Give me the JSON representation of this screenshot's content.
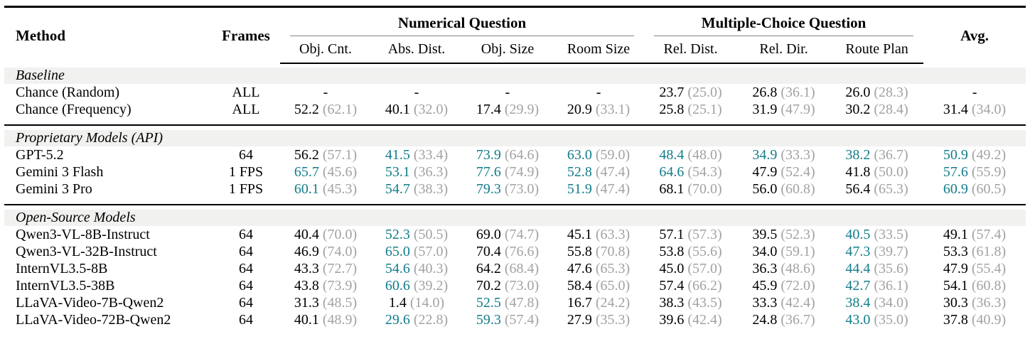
{
  "colors": {
    "highlight_teal": "#127C8A",
    "paren_gray": "#A2A2A2",
    "section_band": "#F1F1F0",
    "rule": "#000000"
  },
  "header": {
    "method": "Method",
    "frames": "Frames",
    "groups": [
      {
        "label": "Numerical Question",
        "span": 4
      },
      {
        "label": "Multiple-Choice Question",
        "span": 3
      }
    ],
    "subcolumns": [
      "Obj. Cnt.",
      "Abs. Dist.",
      "Obj. Size",
      "Room Size",
      "Rel. Dist.",
      "Rel. Dir.",
      "Route Plan"
    ],
    "avg": "Avg."
  },
  "table": {
    "sections": [
      {
        "label": "Baseline",
        "rows": [
          {
            "method": "Chance (Random)",
            "frames": "ALL",
            "cells": [
              {
                "v": "-"
              },
              {
                "v": "-"
              },
              {
                "v": "-"
              },
              {
                "v": "-"
              },
              {
                "v": "23.7",
                "p": "25.0"
              },
              {
                "v": "26.8",
                "p": "36.1"
              },
              {
                "v": "26.0",
                "p": "28.3"
              },
              {
                "v": "-"
              }
            ]
          },
          {
            "method": "Chance (Frequency)",
            "frames": "ALL",
            "cells": [
              {
                "v": "52.2",
                "p": "62.1"
              },
              {
                "v": "40.1",
                "p": "32.0"
              },
              {
                "v": "17.4",
                "p": "29.9"
              },
              {
                "v": "20.9",
                "p": "33.1"
              },
              {
                "v": "25.8",
                "p": "25.1"
              },
              {
                "v": "31.9",
                "p": "47.9"
              },
              {
                "v": "30.2",
                "p": "28.4"
              },
              {
                "v": "31.4",
                "p": "34.0"
              }
            ]
          }
        ]
      },
      {
        "label": "Proprietary Models (API)",
        "rows": [
          {
            "method": "GPT-5.2",
            "frames": "64",
            "cells": [
              {
                "v": "56.2",
                "p": "57.1"
              },
              {
                "v": "41.5",
                "p": "33.4",
                "hl": true
              },
              {
                "v": "73.9",
                "p": "64.6",
                "hl": true
              },
              {
                "v": "63.0",
                "p": "59.0",
                "hl": true
              },
              {
                "v": "48.4",
                "p": "48.0",
                "hl": true
              },
              {
                "v": "34.9",
                "p": "33.3",
                "hl": true
              },
              {
                "v": "38.2",
                "p": "36.7",
                "hl": true
              },
              {
                "v": "50.9",
                "p": "49.2",
                "hl": true
              }
            ]
          },
          {
            "method": "Gemini 3 Flash",
            "frames": "1 FPS",
            "cells": [
              {
                "v": "65.7",
                "p": "45.6",
                "hl": true
              },
              {
                "v": "53.1",
                "p": "36.3",
                "hl": true
              },
              {
                "v": "77.6",
                "p": "74.9",
                "hl": true
              },
              {
                "v": "52.8",
                "p": "47.4",
                "hl": true
              },
              {
                "v": "64.6",
                "p": "54.3",
                "hl": true
              },
              {
                "v": "47.9",
                "p": "52.4"
              },
              {
                "v": "41.8",
                "p": "50.0"
              },
              {
                "v": "57.6",
                "p": "55.9",
                "hl": true
              }
            ]
          },
          {
            "method": "Gemini 3 Pro",
            "frames": "1 FPS",
            "cells": [
              {
                "v": "60.1",
                "p": "45.3",
                "hl": true
              },
              {
                "v": "54.7",
                "p": "38.3",
                "hl": true
              },
              {
                "v": "79.3",
                "p": "73.0",
                "hl": true
              },
              {
                "v": "51.9",
                "p": "47.4",
                "hl": true
              },
              {
                "v": "68.1",
                "p": "70.0"
              },
              {
                "v": "56.0",
                "p": "60.8"
              },
              {
                "v": "56.4",
                "p": "65.3"
              },
              {
                "v": "60.9",
                "p": "60.5",
                "hl": true
              }
            ]
          }
        ]
      },
      {
        "label": "Open-Source Models",
        "rows": [
          {
            "method": "Qwen3-VL-8B-Instruct",
            "frames": "64",
            "cells": [
              {
                "v": "40.4",
                "p": "70.0"
              },
              {
                "v": "52.3",
                "p": "50.5",
                "hl": true
              },
              {
                "v": "69.0",
                "p": "74.7"
              },
              {
                "v": "45.1",
                "p": "63.3"
              },
              {
                "v": "57.1",
                "p": "57.3"
              },
              {
                "v": "39.5",
                "p": "52.3"
              },
              {
                "v": "40.5",
                "p": "33.5",
                "hl": true
              },
              {
                "v": "49.1",
                "p": "57.4"
              }
            ]
          },
          {
            "method": "Qwen3-VL-32B-Instruct",
            "frames": "64",
            "cells": [
              {
                "v": "46.9",
                "p": "74.0"
              },
              {
                "v": "65.0",
                "p": "57.0",
                "hl": true
              },
              {
                "v": "70.4",
                "p": "76.6"
              },
              {
                "v": "55.8",
                "p": "70.8"
              },
              {
                "v": "53.8",
                "p": "55.6"
              },
              {
                "v": "34.0",
                "p": "59.1"
              },
              {
                "v": "47.3",
                "p": "39.7",
                "hl": true
              },
              {
                "v": "53.3",
                "p": "61.8"
              }
            ]
          },
          {
            "method": "InternVL3.5-8B",
            "frames": "64",
            "cells": [
              {
                "v": "43.3",
                "p": "72.7"
              },
              {
                "v": "54.6",
                "p": "40.3",
                "hl": true
              },
              {
                "v": "64.2",
                "p": "68.4"
              },
              {
                "v": "47.6",
                "p": "65.3"
              },
              {
                "v": "45.0",
                "p": "57.0"
              },
              {
                "v": "36.3",
                "p": "48.6"
              },
              {
                "v": "44.4",
                "p": "35.6",
                "hl": true
              },
              {
                "v": "47.9",
                "p": "55.4"
              }
            ]
          },
          {
            "method": "InternVL3.5-38B",
            "frames": "64",
            "cells": [
              {
                "v": "43.8",
                "p": "73.9"
              },
              {
                "v": "60.6",
                "p": "39.2",
                "hl": true
              },
              {
                "v": "70.2",
                "p": "73.0"
              },
              {
                "v": "58.4",
                "p": "65.0"
              },
              {
                "v": "57.4",
                "p": "66.2"
              },
              {
                "v": "45.9",
                "p": "72.0"
              },
              {
                "v": "42.7",
                "p": "36.1",
                "hl": true
              },
              {
                "v": "54.1",
                "p": "60.8"
              }
            ]
          },
          {
            "method": "LLaVA-Video-7B-Qwen2",
            "frames": "64",
            "cells": [
              {
                "v": "31.3",
                "p": "48.5"
              },
              {
                "v": "1.4",
                "p": "14.0"
              },
              {
                "v": "52.5",
                "p": "47.8",
                "hl": true
              },
              {
                "v": "16.7",
                "p": "24.2"
              },
              {
                "v": "38.3",
                "p": "43.5"
              },
              {
                "v": "33.3",
                "p": "42.4"
              },
              {
                "v": "38.4",
                "p": "34.0",
                "hl": true
              },
              {
                "v": "30.3",
                "p": "36.3"
              }
            ]
          },
          {
            "method": "LLaVA-Video-72B-Qwen2",
            "frames": "64",
            "cells": [
              {
                "v": "40.1",
                "p": "48.9"
              },
              {
                "v": "29.6",
                "p": "22.8",
                "hl": true
              },
              {
                "v": "59.3",
                "p": "57.4",
                "hl": true
              },
              {
                "v": "27.9",
                "p": "35.3"
              },
              {
                "v": "39.6",
                "p": "42.4"
              },
              {
                "v": "24.8",
                "p": "36.7"
              },
              {
                "v": "43.0",
                "p": "35.0",
                "hl": true
              },
              {
                "v": "37.8",
                "p": "40.9"
              }
            ]
          }
        ]
      }
    ]
  }
}
